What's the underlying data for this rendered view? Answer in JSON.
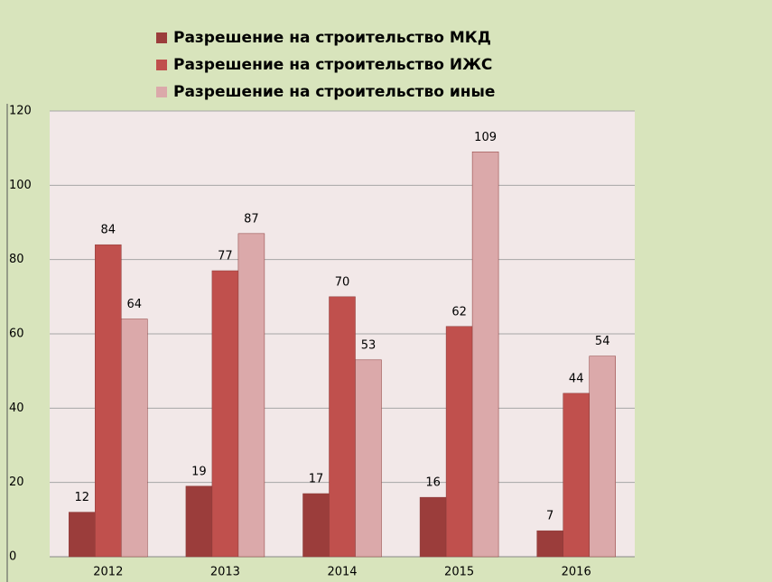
{
  "chart_data": {
    "type": "bar",
    "categories": [
      "2012",
      "2013",
      "2014",
      "2015",
      "2016"
    ],
    "series": [
      {
        "name": "Разрешение на строительство МКД",
        "color": "#9b3d3b",
        "values": [
          12,
          19,
          17,
          16,
          7
        ]
      },
      {
        "name": "Разрешение на строительство ИЖС",
        "color": "#c0504d",
        "values": [
          84,
          77,
          70,
          62,
          44
        ]
      },
      {
        "name": "Разрешение на строительство иные",
        "color": "#dba9aa",
        "values": [
          64,
          87,
          53,
          109,
          54
        ]
      }
    ],
    "ylim": [
      0,
      120
    ],
    "yticks": [
      0,
      20,
      40,
      60,
      80,
      100,
      120
    ],
    "grid": true,
    "legend": "top"
  }
}
